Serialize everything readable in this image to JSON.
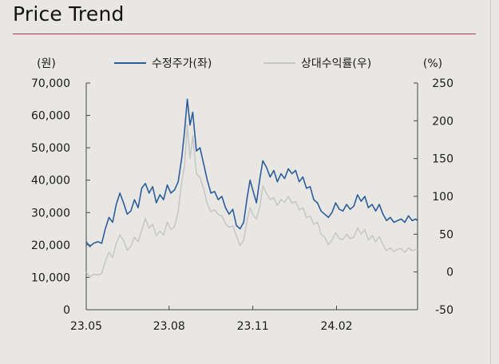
{
  "title": "Price Trend",
  "chart_data": {
    "type": "line",
    "left_axis": {
      "unit_label": "(원)",
      "range": [
        0,
        70000
      ],
      "ticks": [
        0,
        10000,
        20000,
        30000,
        40000,
        50000,
        60000,
        70000
      ],
      "tick_labels": [
        "0",
        "10,000",
        "20,000",
        "30,000",
        "40,000",
        "50,000",
        "60,000",
        "70,000"
      ]
    },
    "right_axis": {
      "unit_label": "(%)",
      "range": [
        -50,
        250
      ],
      "ticks": [
        -50,
        0,
        50,
        100,
        150,
        200,
        250
      ],
      "tick_labels": [
        "-50",
        "0",
        "50",
        "100",
        "150",
        "200",
        "250"
      ]
    },
    "x_axis": {
      "range": [
        "2023-05-02",
        "2024-04-30"
      ],
      "tick_dates": [
        "2023-05-02",
        "2023-08-01",
        "2023-11-01",
        "2024-02-01"
      ],
      "tick_labels": [
        "23.05",
        "23.08",
        "23.11",
        "24.02"
      ]
    },
    "grid": false,
    "legend_position": "top",
    "series": [
      {
        "name": "수정주가(좌)",
        "axis": "left",
        "color": "#2b5d9b",
        "points": [
          [
            "2023-05-02",
            21000
          ],
          [
            "2023-05-06",
            19500
          ],
          [
            "2023-05-10",
            20500
          ],
          [
            "2023-05-15",
            21000
          ],
          [
            "2023-05-19",
            20500
          ],
          [
            "2023-05-23",
            25000
          ],
          [
            "2023-05-27",
            28500
          ],
          [
            "2023-05-31",
            27000
          ],
          [
            "2023-06-04",
            32500
          ],
          [
            "2023-06-08",
            36000
          ],
          [
            "2023-06-12",
            33000
          ],
          [
            "2023-06-16",
            29500
          ],
          [
            "2023-06-20",
            30500
          ],
          [
            "2023-06-24",
            34000
          ],
          [
            "2023-06-28",
            31500
          ],
          [
            "2023-07-02",
            37500
          ],
          [
            "2023-07-06",
            39000
          ],
          [
            "2023-07-10",
            36000
          ],
          [
            "2023-07-14",
            38000
          ],
          [
            "2023-07-18",
            33000
          ],
          [
            "2023-07-22",
            35500
          ],
          [
            "2023-07-26",
            34000
          ],
          [
            "2023-07-30",
            38500
          ],
          [
            "2023-08-03",
            36000
          ],
          [
            "2023-08-07",
            37000
          ],
          [
            "2023-08-11",
            39500
          ],
          [
            "2023-08-15",
            47000
          ],
          [
            "2023-08-18",
            55000
          ],
          [
            "2023-08-21",
            65000
          ],
          [
            "2023-08-24",
            57000
          ],
          [
            "2023-08-27",
            61000
          ],
          [
            "2023-08-31",
            49000
          ],
          [
            "2023-09-04",
            50000
          ],
          [
            "2023-09-08",
            45000
          ],
          [
            "2023-09-12",
            40000
          ],
          [
            "2023-09-16",
            36000
          ],
          [
            "2023-09-20",
            36500
          ],
          [
            "2023-09-24",
            34000
          ],
          [
            "2023-09-28",
            35000
          ],
          [
            "2023-10-02",
            31500
          ],
          [
            "2023-10-06",
            29500
          ],
          [
            "2023-10-10",
            31000
          ],
          [
            "2023-10-14",
            26000
          ],
          [
            "2023-10-18",
            25000
          ],
          [
            "2023-10-22",
            27000
          ],
          [
            "2023-10-26",
            35000
          ],
          [
            "2023-10-29",
            40000
          ],
          [
            "2023-11-01",
            37000
          ],
          [
            "2023-11-05",
            33000
          ],
          [
            "2023-11-09",
            41000
          ],
          [
            "2023-11-12",
            46000
          ],
          [
            "2023-11-16",
            44000
          ],
          [
            "2023-11-20",
            41000
          ],
          [
            "2023-11-24",
            43000
          ],
          [
            "2023-11-28",
            39500
          ],
          [
            "2023-12-02",
            42000
          ],
          [
            "2023-12-06",
            40500
          ],
          [
            "2023-12-10",
            43500
          ],
          [
            "2023-12-14",
            42000
          ],
          [
            "2023-12-18",
            43000
          ],
          [
            "2023-12-22",
            39500
          ],
          [
            "2023-12-26",
            41000
          ],
          [
            "2023-12-30",
            37500
          ],
          [
            "2024-01-03",
            38000
          ],
          [
            "2024-01-07",
            34000
          ],
          [
            "2024-01-11",
            33000
          ],
          [
            "2024-01-15",
            30500
          ],
          [
            "2024-01-19",
            29500
          ],
          [
            "2024-01-23",
            28500
          ],
          [
            "2024-01-27",
            30000
          ],
          [
            "2024-01-31",
            33000
          ],
          [
            "2024-02-04",
            31000
          ],
          [
            "2024-02-08",
            30500
          ],
          [
            "2024-02-12",
            32500
          ],
          [
            "2024-02-16",
            31000
          ],
          [
            "2024-02-20",
            32000
          ],
          [
            "2024-02-24",
            35500
          ],
          [
            "2024-02-28",
            33500
          ],
          [
            "2024-03-03",
            35000
          ],
          [
            "2024-03-07",
            31500
          ],
          [
            "2024-03-11",
            32500
          ],
          [
            "2024-03-15",
            30500
          ],
          [
            "2024-03-19",
            32500
          ],
          [
            "2024-03-23",
            29500
          ],
          [
            "2024-03-27",
            27500
          ],
          [
            "2024-03-31",
            28500
          ],
          [
            "2024-04-04",
            27000
          ],
          [
            "2024-04-08",
            27500
          ],
          [
            "2024-04-12",
            28000
          ],
          [
            "2024-04-16",
            27000
          ],
          [
            "2024-04-20",
            29000
          ],
          [
            "2024-04-24",
            27500
          ],
          [
            "2024-04-28",
            28000
          ],
          [
            "2024-04-30",
            27500
          ]
        ]
      },
      {
        "name": "상대수익률(우)",
        "axis": "right",
        "color": "#c6c6c6",
        "points": [
          [
            "2023-05-02",
            0
          ],
          [
            "2023-05-06",
            -7
          ],
          [
            "2023-05-10",
            -3
          ],
          [
            "2023-05-15",
            -4
          ],
          [
            "2023-05-19",
            -2
          ],
          [
            "2023-05-23",
            14
          ],
          [
            "2023-05-27",
            26
          ],
          [
            "2023-05-31",
            19
          ],
          [
            "2023-06-04",
            38
          ],
          [
            "2023-06-08",
            49
          ],
          [
            "2023-06-12",
            42
          ],
          [
            "2023-06-16",
            29
          ],
          [
            "2023-06-20",
            34
          ],
          [
            "2023-06-24",
            46
          ],
          [
            "2023-06-28",
            40
          ],
          [
            "2023-07-02",
            55
          ],
          [
            "2023-07-06",
            71
          ],
          [
            "2023-07-10",
            58
          ],
          [
            "2023-07-14",
            63
          ],
          [
            "2023-07-18",
            48
          ],
          [
            "2023-07-22",
            54
          ],
          [
            "2023-07-26",
            49
          ],
          [
            "2023-07-30",
            66
          ],
          [
            "2023-08-03",
            56
          ],
          [
            "2023-08-07",
            60
          ],
          [
            "2023-08-11",
            80
          ],
          [
            "2023-08-15",
            120
          ],
          [
            "2023-08-18",
            140
          ],
          [
            "2023-08-21",
            195
          ],
          [
            "2023-08-24",
            150
          ],
          [
            "2023-08-27",
            180
          ],
          [
            "2023-08-31",
            130
          ],
          [
            "2023-09-04",
            125
          ],
          [
            "2023-09-08",
            110
          ],
          [
            "2023-09-12",
            90
          ],
          [
            "2023-09-16",
            80
          ],
          [
            "2023-09-20",
            82
          ],
          [
            "2023-09-24",
            76
          ],
          [
            "2023-09-28",
            74
          ],
          [
            "2023-10-02",
            64
          ],
          [
            "2023-10-06",
            59
          ],
          [
            "2023-10-10",
            61
          ],
          [
            "2023-10-14",
            48
          ],
          [
            "2023-10-18",
            35
          ],
          [
            "2023-10-22",
            42
          ],
          [
            "2023-10-26",
            70
          ],
          [
            "2023-10-29",
            85
          ],
          [
            "2023-11-01",
            76
          ],
          [
            "2023-11-05",
            70
          ],
          [
            "2023-11-09",
            88
          ],
          [
            "2023-11-12",
            114
          ],
          [
            "2023-11-16",
            104
          ],
          [
            "2023-11-20",
            96
          ],
          [
            "2023-11-24",
            98
          ],
          [
            "2023-11-28",
            88
          ],
          [
            "2023-12-02",
            96
          ],
          [
            "2023-12-06",
            92
          ],
          [
            "2023-12-10",
            100
          ],
          [
            "2023-12-14",
            91
          ],
          [
            "2023-12-18",
            93
          ],
          [
            "2023-12-22",
            82
          ],
          [
            "2023-12-26",
            85
          ],
          [
            "2023-12-30",
            72
          ],
          [
            "2024-01-03",
            74
          ],
          [
            "2024-01-07",
            63
          ],
          [
            "2024-01-11",
            66
          ],
          [
            "2024-01-15",
            50
          ],
          [
            "2024-01-19",
            46
          ],
          [
            "2024-01-23",
            36
          ],
          [
            "2024-01-27",
            42
          ],
          [
            "2024-01-31",
            52
          ],
          [
            "2024-02-04",
            44
          ],
          [
            "2024-02-08",
            43
          ],
          [
            "2024-02-12",
            50
          ],
          [
            "2024-02-16",
            44
          ],
          [
            "2024-02-20",
            46
          ],
          [
            "2024-02-24",
            58
          ],
          [
            "2024-02-28",
            50
          ],
          [
            "2024-03-03",
            56
          ],
          [
            "2024-03-07",
            42
          ],
          [
            "2024-03-11",
            48
          ],
          [
            "2024-03-15",
            40
          ],
          [
            "2024-03-19",
            47
          ],
          [
            "2024-03-23",
            36
          ],
          [
            "2024-03-27",
            28
          ],
          [
            "2024-03-31",
            32
          ],
          [
            "2024-04-04",
            27
          ],
          [
            "2024-04-08",
            30
          ],
          [
            "2024-04-12",
            31
          ],
          [
            "2024-04-16",
            26
          ],
          [
            "2024-04-20",
            32
          ],
          [
            "2024-04-24",
            28
          ],
          [
            "2024-04-28",
            30
          ],
          [
            "2024-04-30",
            29
          ]
        ]
      }
    ]
  }
}
